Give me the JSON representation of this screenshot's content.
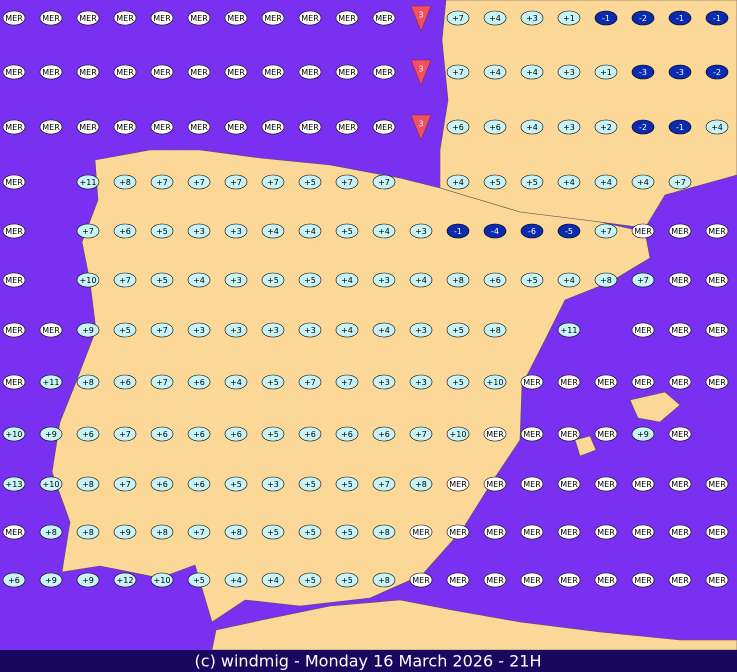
{
  "map_title": "(c) windmig - Monday 16 March 2026 - 21H",
  "rows": [
    [
      "MER",
      "MER",
      "MER",
      "MER",
      "MER",
      "MER",
      "MER",
      "MER",
      "MER",
      "MER",
      "MER",
      "3",
      "+7",
      "+4",
      "+3",
      "+1",
      "-1",
      "-2",
      "-1",
      "-1"
    ],
    [
      "MER",
      "MER",
      "MER",
      "MER",
      "MER",
      "MER",
      "MER",
      "MER",
      "MER",
      "MER",
      "MER",
      "3",
      "+7",
      "+4",
      "+4",
      "+3",
      "+1",
      "-3",
      "-3",
      "-2"
    ],
    [
      "MER",
      "MER",
      "MER",
      "MER",
      "MER",
      "MER",
      "MER",
      "MER",
      "MER",
      "MER",
      "MER",
      "3",
      "+6",
      "+6",
      "+4",
      "+3",
      "+2",
      "-2",
      "-1",
      "+4"
    ],
    [
      "MER",
      null,
      "+11",
      "+8",
      "+7",
      "+7",
      "+7",
      "+7",
      "+5",
      "+7",
      "+7",
      null,
      "+4",
      "+5",
      "+5",
      "+4",
      "+4",
      "+4",
      "+7",
      null
    ],
    [
      "MER",
      null,
      "+7",
      "+6",
      "+5",
      "+3",
      "+3",
      "+4",
      "+4",
      "+5",
      "+4",
      "+3",
      "-1",
      "-4",
      "-6",
      "-5",
      "+7",
      "MER",
      "MER",
      "MER"
    ],
    [
      "MER",
      null,
      "+10",
      "+7",
      "+5",
      "+4",
      "+3",
      "+5",
      "+5",
      "+4",
      "+3",
      "+4",
      "+8",
      "+6",
      "+5",
      "+4",
      "+8",
      "+7",
      "MER",
      "MER"
    ],
    [
      "MER",
      "MER",
      "+9",
      "+5",
      "+7",
      "+3",
      "+3",
      "+3",
      "+3",
      "+4",
      "+4",
      "+3",
      "+5",
      "+8",
      null,
      "+11",
      null,
      "MER",
      "MER",
      "MER"
    ],
    [
      "MER",
      "+11",
      "+8",
      "+6",
      "+7",
      "+6",
      "+4",
      "+5",
      "+7",
      "+7",
      "+3",
      "+3",
      "+5",
      "+10",
      "MER",
      "MER",
      "MER",
      "MER",
      "MER",
      "MER"
    ],
    [
      "+10",
      "+9",
      "+6",
      "+7",
      "+6",
      "+6",
      "+6",
      "+5",
      "+6",
      "+6",
      "+6",
      "+7",
      "+10",
      "MER",
      "MER",
      "MER",
      "MER",
      "+9",
      "MER",
      null
    ],
    [
      "+13",
      "+10",
      "+8",
      "+7",
      "+6",
      "+6",
      "+5",
      "+3",
      "+5",
      "+5",
      "+7",
      "+8",
      "MER",
      "MER",
      "MER",
      "MER",
      "MER",
      "MER",
      "MER",
      "MER"
    ],
    [
      "MER",
      "+8",
      "+8",
      "+9",
      "+8",
      "+7",
      "+8",
      "+5",
      "+5",
      "+5",
      "+8",
      "MER",
      "MER",
      "MER",
      "MER",
      "MER",
      "MER",
      "MER",
      "MER",
      "MER"
    ],
    [
      "+6",
      "+9",
      "+9",
      "+12",
      "+10",
      "+5",
      "+4",
      "+4",
      "+5",
      "+5",
      "+8",
      "MER",
      "MER",
      "MER",
      "MER",
      "MER",
      "MER",
      "MER",
      "MER",
      "MER"
    ]
  ]
}
